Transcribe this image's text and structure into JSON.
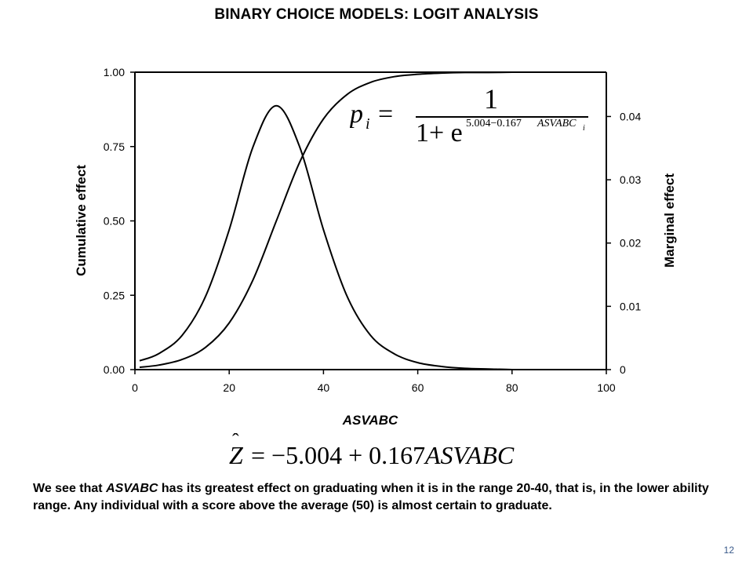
{
  "title": "BINARY CHOICE MODELS: LOGIT ANALYSIS",
  "formula_top": {
    "lhs": "p",
    "lhs_sub": "i",
    "equals": "=",
    "numerator": "1",
    "denominator_base": "1+ e",
    "exponent": "5.004−0.167",
    "exponent_var": "ASVABC",
    "exponent_sub": "i"
  },
  "formula_bottom": {
    "lhs": "Z",
    "hat": "ˆ",
    "rhs": "= −5.004 + 0.167",
    "rhs_var": "ASVABC"
  },
  "paragraph": {
    "part1": "We see that ",
    "var": "ASVABC",
    "part2": " has its greatest effect on graduating when it is in the range 20-40, that is, in the lower ability range.  Any individual with a score above the average (50) is almost certain to graduate."
  },
  "page_number": "12",
  "chart_data": {
    "type": "line",
    "xlabel": "ASVABC",
    "ylabel_left": "Cumulative effect",
    "ylabel_right": "Marginal effect",
    "xlim": [
      0,
      100
    ],
    "ylim_left": [
      0,
      1
    ],
    "ylim_right": [
      0,
      0.047
    ],
    "x_ticks": [
      "0",
      "20",
      "40",
      "60",
      "80",
      "100"
    ],
    "y_ticks_left": [
      "0.00",
      "0.25",
      "0.50",
      "0.75",
      "1.00"
    ],
    "y_ticks_right": [
      "0",
      "0.01",
      "0.02",
      "0.03",
      "0.04"
    ],
    "grid": false,
    "series": [
      {
        "axis": "left",
        "x": [
          1,
          5,
          10,
          15,
          20,
          25,
          30,
          35,
          40,
          45,
          50,
          55,
          60,
          65,
          70,
          75,
          80,
          85,
          90,
          95,
          100
        ],
        "y": [
          0.008,
          0.015,
          0.034,
          0.075,
          0.157,
          0.3,
          0.5,
          0.699,
          0.843,
          0.925,
          0.966,
          0.985,
          0.993,
          0.997,
          0.999,
          0.999,
          1.0,
          1.0,
          1.0,
          1.0,
          1.0
        ]
      },
      {
        "axis": "right",
        "x": [
          1,
          5,
          10,
          15,
          20,
          25,
          30,
          35,
          40,
          45,
          50,
          55,
          60,
          65,
          70,
          75,
          80,
          85,
          90,
          95,
          100
        ],
        "y": [
          0.0014,
          0.0025,
          0.0054,
          0.0116,
          0.0221,
          0.0351,
          0.0417,
          0.0351,
          0.0221,
          0.0116,
          0.0054,
          0.0025,
          0.0011,
          0.0005,
          0.0002,
          0.0001,
          0.0,
          0.0,
          0.0,
          0.0,
          0.0
        ]
      }
    ]
  }
}
